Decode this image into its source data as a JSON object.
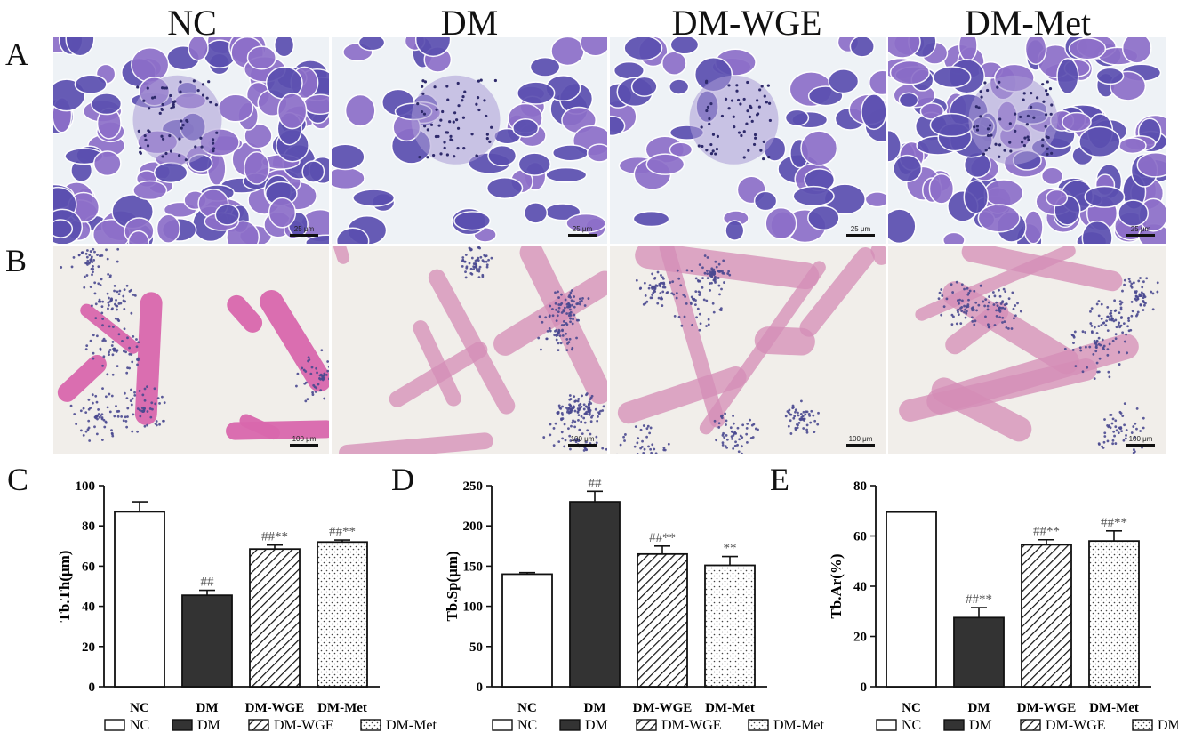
{
  "figure": {
    "column_titles": [
      "NC",
      "DM",
      "DM-WGE",
      "DM-Met"
    ],
    "row_labels": [
      "A",
      "B"
    ],
    "scale_labels": {
      "row_a": "25 μm",
      "row_b": "100 μm"
    },
    "colors": {
      "he_pancreas_bg": "#eef2f6",
      "he_pancreas_tissue": "#5b4fb0",
      "he_pancreas_tissue_light": "#8d6fc9",
      "he_bone_bg": "#f1eeea",
      "he_bone_trabeculae": "#d58db7",
      "he_bone_marrow": "#4a4990"
    }
  },
  "chart_data": [
    {
      "panel_label": "C",
      "type": "bar",
      "ylabel": "Tb.Th(μm)",
      "ylim": [
        0,
        100
      ],
      "yticks": [
        "0",
        "20",
        "40",
        "60",
        "80",
        "100"
      ],
      "categories": [
        "NC",
        "DM",
        "DM-WGE",
        "DM-Met"
      ],
      "values": [
        87,
        45.5,
        68.5,
        72
      ],
      "errors": [
        5,
        2.5,
        2,
        1
      ],
      "annotations": [
        "",
        "##",
        "##**",
        "##**"
      ],
      "legend": [
        "NC",
        "DM",
        "DM-WGE",
        "DM-Met"
      ],
      "legend_position": "bottom"
    },
    {
      "panel_label": "D",
      "type": "bar",
      "ylabel": "Tb.Sp(μm)",
      "ylim": [
        0,
        250
      ],
      "yticks": [
        "0",
        "50",
        "100",
        "150",
        "200",
        "250"
      ],
      "categories": [
        "NC",
        "DM",
        "DM-WGE",
        "DM-Met"
      ],
      "values": [
        140,
        230,
        165,
        151
      ],
      "errors": [
        2,
        13,
        10,
        11
      ],
      "annotations": [
        "",
        "##",
        "##**",
        "**"
      ],
      "legend": [
        "NC",
        "DM",
        "DM-WGE",
        "DM-Met"
      ],
      "legend_position": "bottom"
    },
    {
      "panel_label": "E",
      "type": "bar",
      "ylabel": "Tb.Ar(%)",
      "ylim": [
        0,
        80
      ],
      "yticks": [
        "0",
        "20",
        "40",
        "60",
        "80"
      ],
      "categories": [
        "NC",
        "DM",
        "DM-WGE",
        "DM-Met"
      ],
      "values": [
        69.5,
        27.5,
        56.5,
        58
      ],
      "errors": [
        0,
        4,
        2,
        4
      ],
      "annotations": [
        "",
        "##**",
        "##**",
        "##**"
      ],
      "legend": [
        "NC",
        "DM",
        "DM-WGE",
        "DM-Met"
      ],
      "legend_position": "bottom"
    }
  ]
}
